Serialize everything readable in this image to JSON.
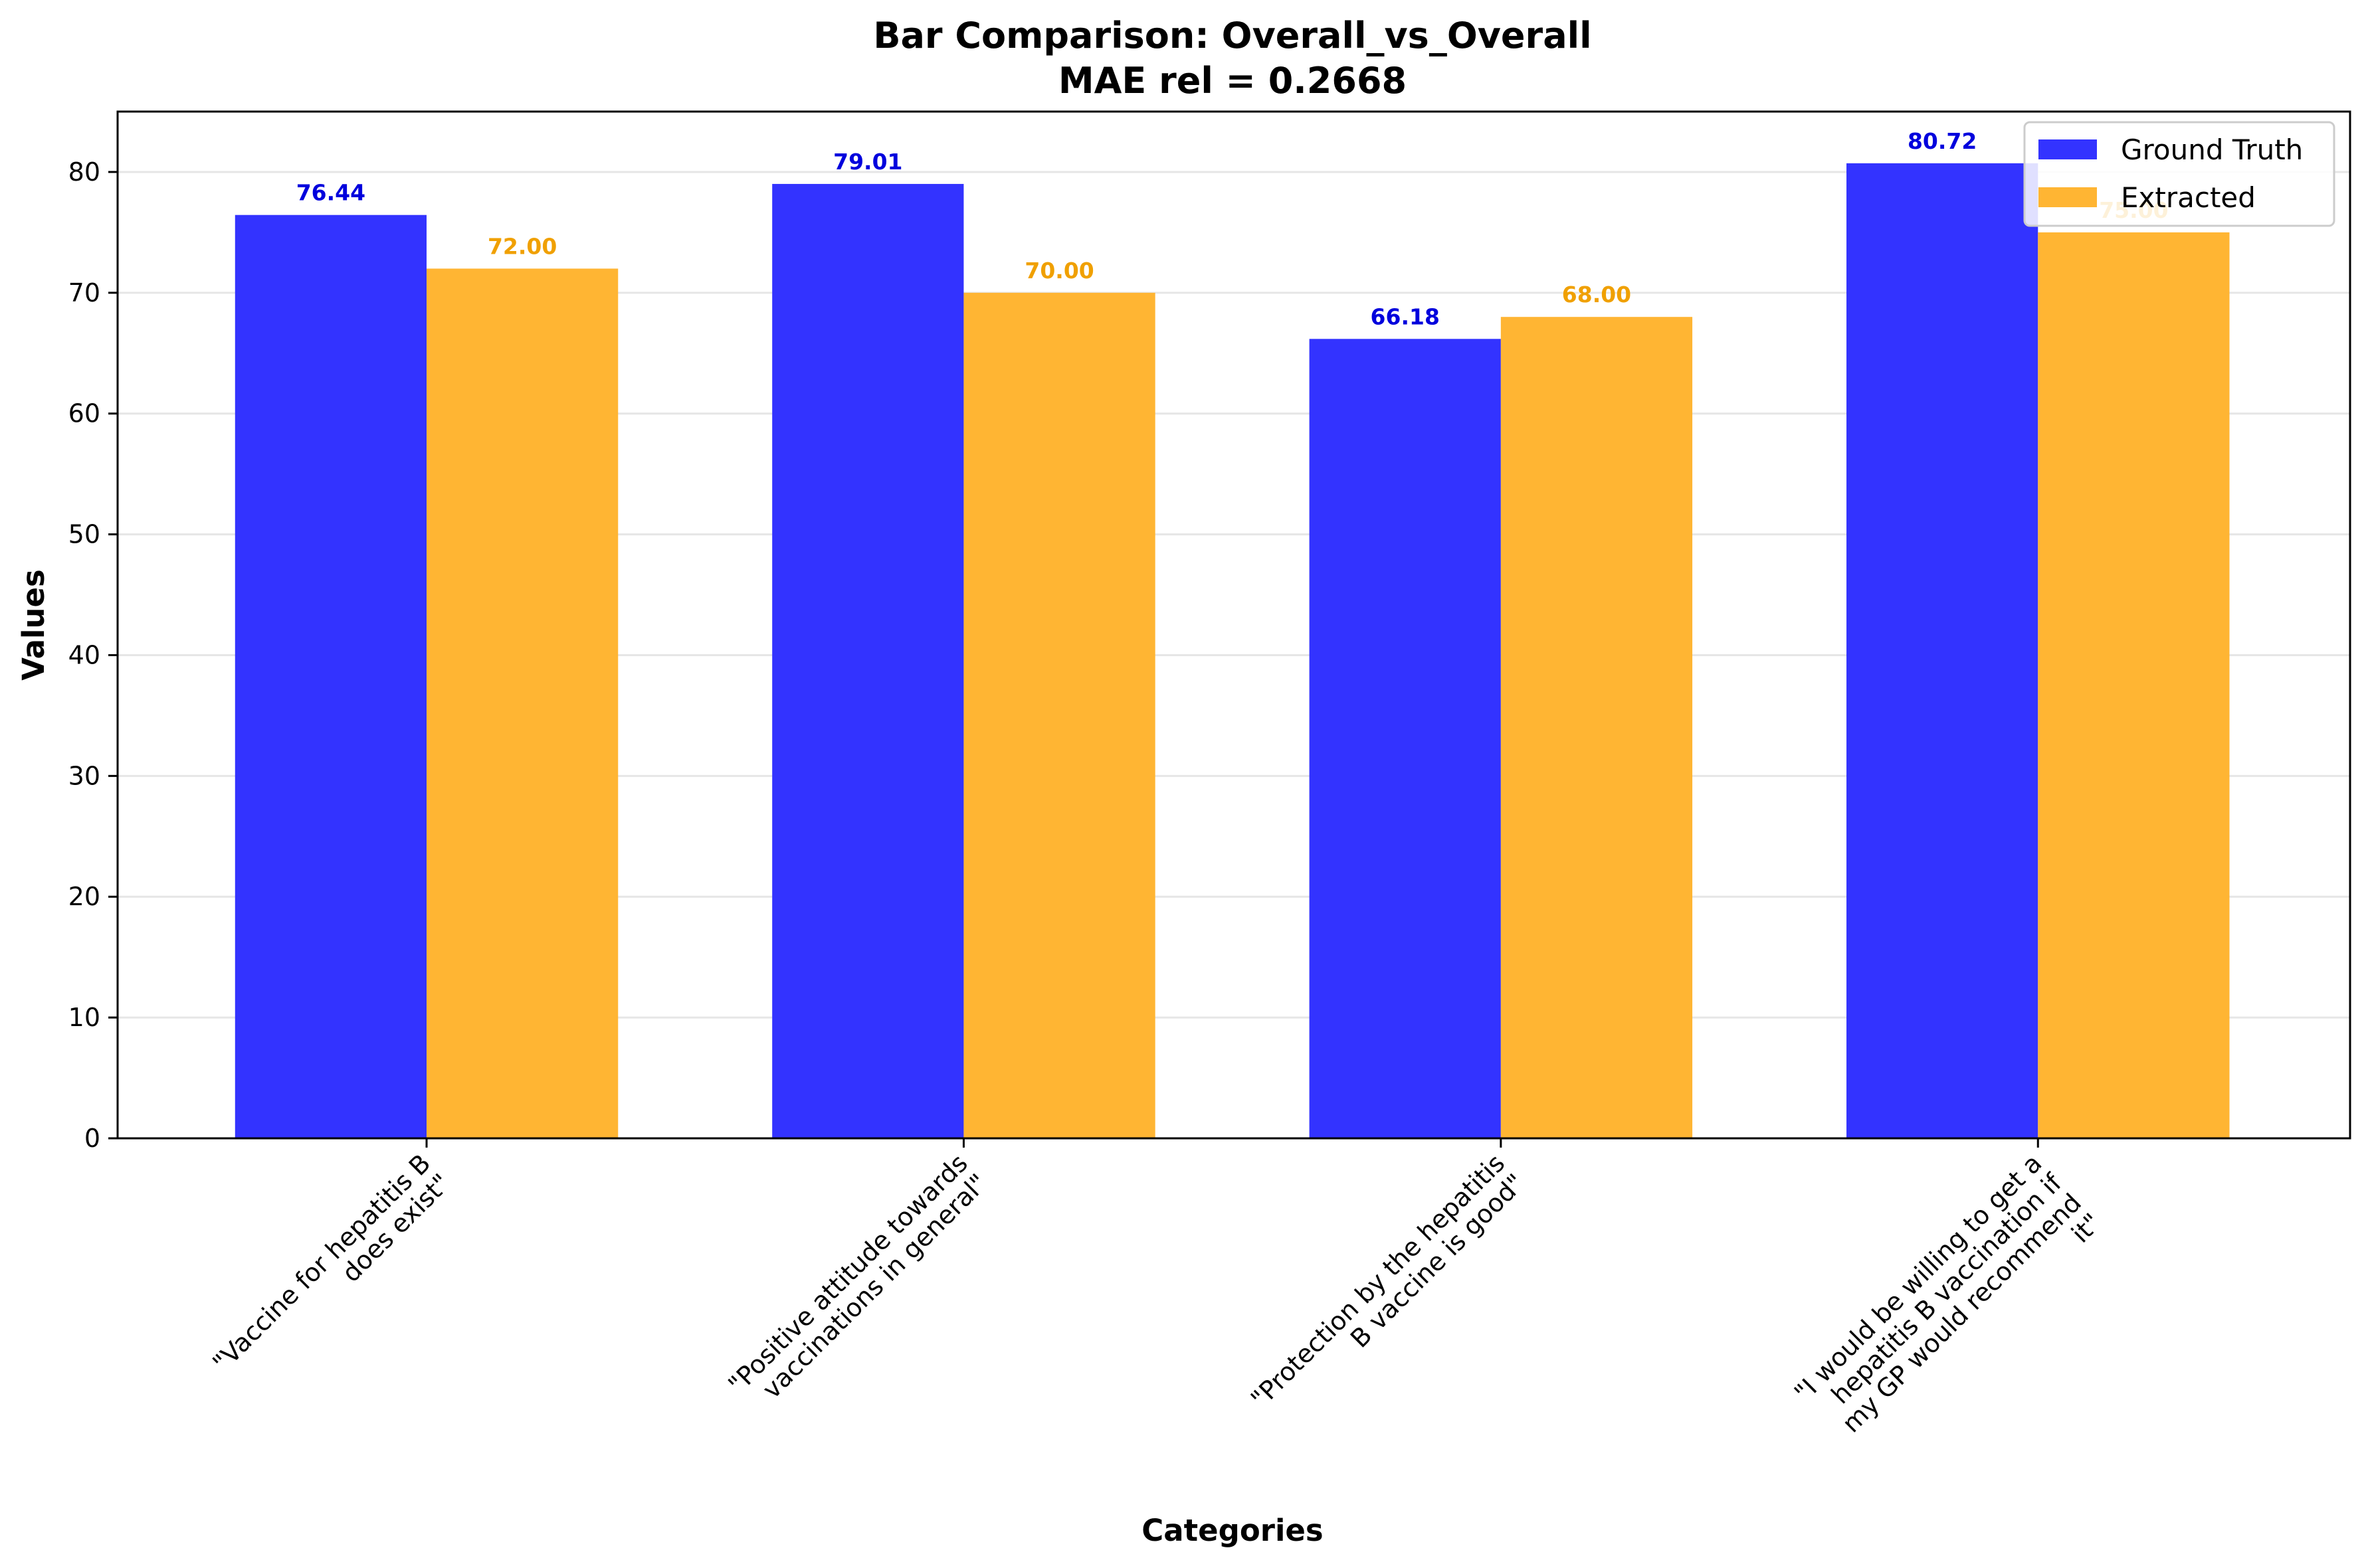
{
  "chart_data": {
    "type": "bar",
    "title": "Bar Comparison: Overall_vs_Overall",
    "subtitle": "MAE rel = 0.2668",
    "xlabel": "Categories",
    "ylabel": "Values",
    "ylim": [
      0,
      85
    ],
    "yticks": [
      0,
      10,
      20,
      30,
      40,
      50,
      60,
      70,
      80
    ],
    "grid": "y",
    "legend_position": "top-right",
    "categories": [
      "\"Vaccine for hepatitis B does exist\"",
      "\"Positive attitude towards vaccinations in general\"",
      "\"Protection by the hepatitis B vaccine is good\"",
      "\"I would be willing to get a hepatitis B vaccination if my GP would recommend it\""
    ],
    "category_lines": [
      [
        "\"Vaccine for hepatitis B",
        "does exist\""
      ],
      [
        "\"Positive attitude towards",
        "vaccinations in general\""
      ],
      [
        "\"Protection by the hepatitis",
        "B vaccine is good\""
      ],
      [
        "\"I would be willing to get a",
        "hepatitis B vaccination if",
        "my GP would recommend",
        "it\""
      ]
    ],
    "series": [
      {
        "name": "Ground Truth",
        "color": "#3333ff",
        "label_color": "#0000dd",
        "values": [
          76.44,
          79.01,
          66.18,
          80.72
        ],
        "value_labels": [
          "76.44",
          "79.01",
          "66.18",
          "80.72"
        ]
      },
      {
        "name": "Extracted",
        "color": "#ffb533",
        "label_color": "#f0a000",
        "values": [
          72.0,
          70.0,
          68.0,
          75.0
        ],
        "value_labels": [
          "72.00",
          "70.00",
          "68.00",
          "75.00"
        ]
      }
    ]
  }
}
